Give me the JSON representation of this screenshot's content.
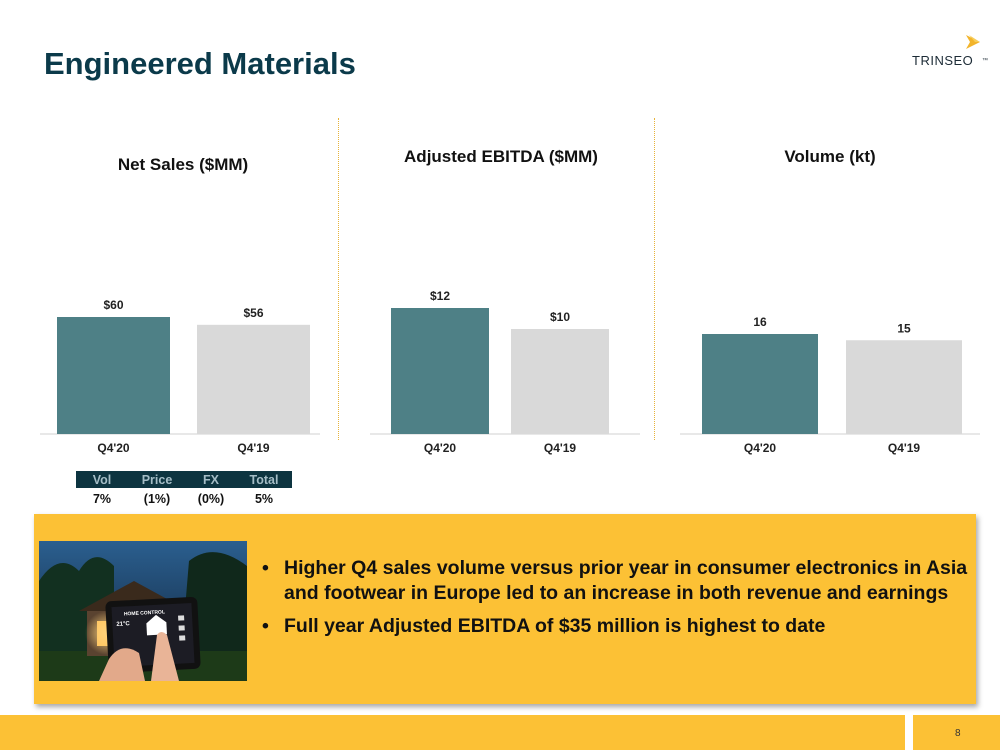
{
  "page": {
    "title": "Engineered Materials",
    "logo_text": "TRINSEO",
    "logo_tm": "™",
    "page_number": "8"
  },
  "chart_data": [
    {
      "type": "bar",
      "title": "Net Sales ($MM)",
      "categories": [
        "Q4'20",
        "Q4'19"
      ],
      "values": [
        60,
        56
      ],
      "labels": [
        "$60",
        "$56"
      ],
      "colors": [
        "#4e8086",
        "#d9d9d9"
      ],
      "ylim": [
        0,
        65
      ]
    },
    {
      "type": "bar",
      "title": "Adjusted EBITDA ($MM)",
      "categories": [
        "Q4'20",
        "Q4'19"
      ],
      "values": [
        12,
        10
      ],
      "labels": [
        "$12",
        "$10"
      ],
      "colors": [
        "#4e8086",
        "#d9d9d9"
      ],
      "ylim": [
        0,
        24
      ]
    },
    {
      "type": "bar",
      "title": "Volume (kt)",
      "categories": [
        "Q4'20",
        "Q4'19"
      ],
      "values": [
        16,
        15
      ],
      "labels": [
        "16",
        "15"
      ],
      "colors": [
        "#4e8086",
        "#d9d9d9"
      ],
      "ylim": [
        0,
        39
      ]
    }
  ],
  "bridge": {
    "headers": [
      "Vol",
      "Price",
      "FX",
      "Total"
    ],
    "values": [
      "7%",
      "(1%)",
      "(0%)",
      "5%"
    ]
  },
  "callout": {
    "image": "smart-home-tablet-photo",
    "image_text": [
      "HOME CONTROL",
      "21°C"
    ],
    "bullets": [
      "Higher Q4 sales volume versus prior year in consumer electronics in Asia and footwear in Europe led to an increase in both revenue and earnings",
      "Full year Adjusted EBITDA of $35 million is highest to date"
    ]
  }
}
